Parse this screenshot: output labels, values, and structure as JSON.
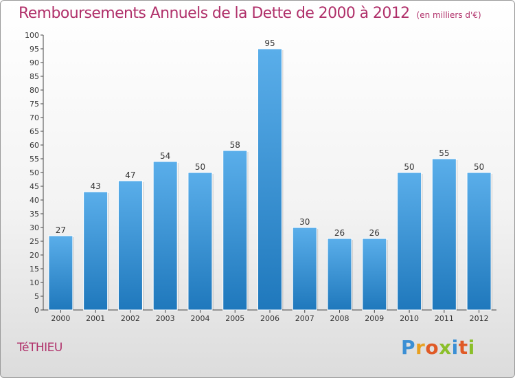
{
  "header": {
    "title": "Remboursements Annuels de la Dette de 2000 à 2012",
    "subtitle": "(en milliers d'€)"
  },
  "footer": {
    "commune": "TéTHIEU",
    "logo": "Proxiti"
  },
  "colors": {
    "title": "#b0306a",
    "bar_top": "#5aaeea",
    "bar_bottom": "#1f78bc"
  },
  "chart_data": {
    "type": "bar",
    "categories": [
      "2000",
      "2001",
      "2002",
      "2003",
      "2004",
      "2005",
      "2006",
      "2007",
      "2008",
      "2009",
      "2010",
      "2011",
      "2012"
    ],
    "values": [
      27,
      43,
      47,
      54,
      50,
      58,
      95,
      30,
      26,
      26,
      50,
      55,
      50
    ],
    "ylim": [
      0,
      100
    ],
    "yticks": [
      0,
      5,
      10,
      15,
      20,
      25,
      30,
      35,
      40,
      45,
      50,
      55,
      60,
      65,
      70,
      75,
      80,
      85,
      90,
      95,
      100
    ],
    "data_labels": true,
    "grid": false,
    "legend": "none"
  }
}
